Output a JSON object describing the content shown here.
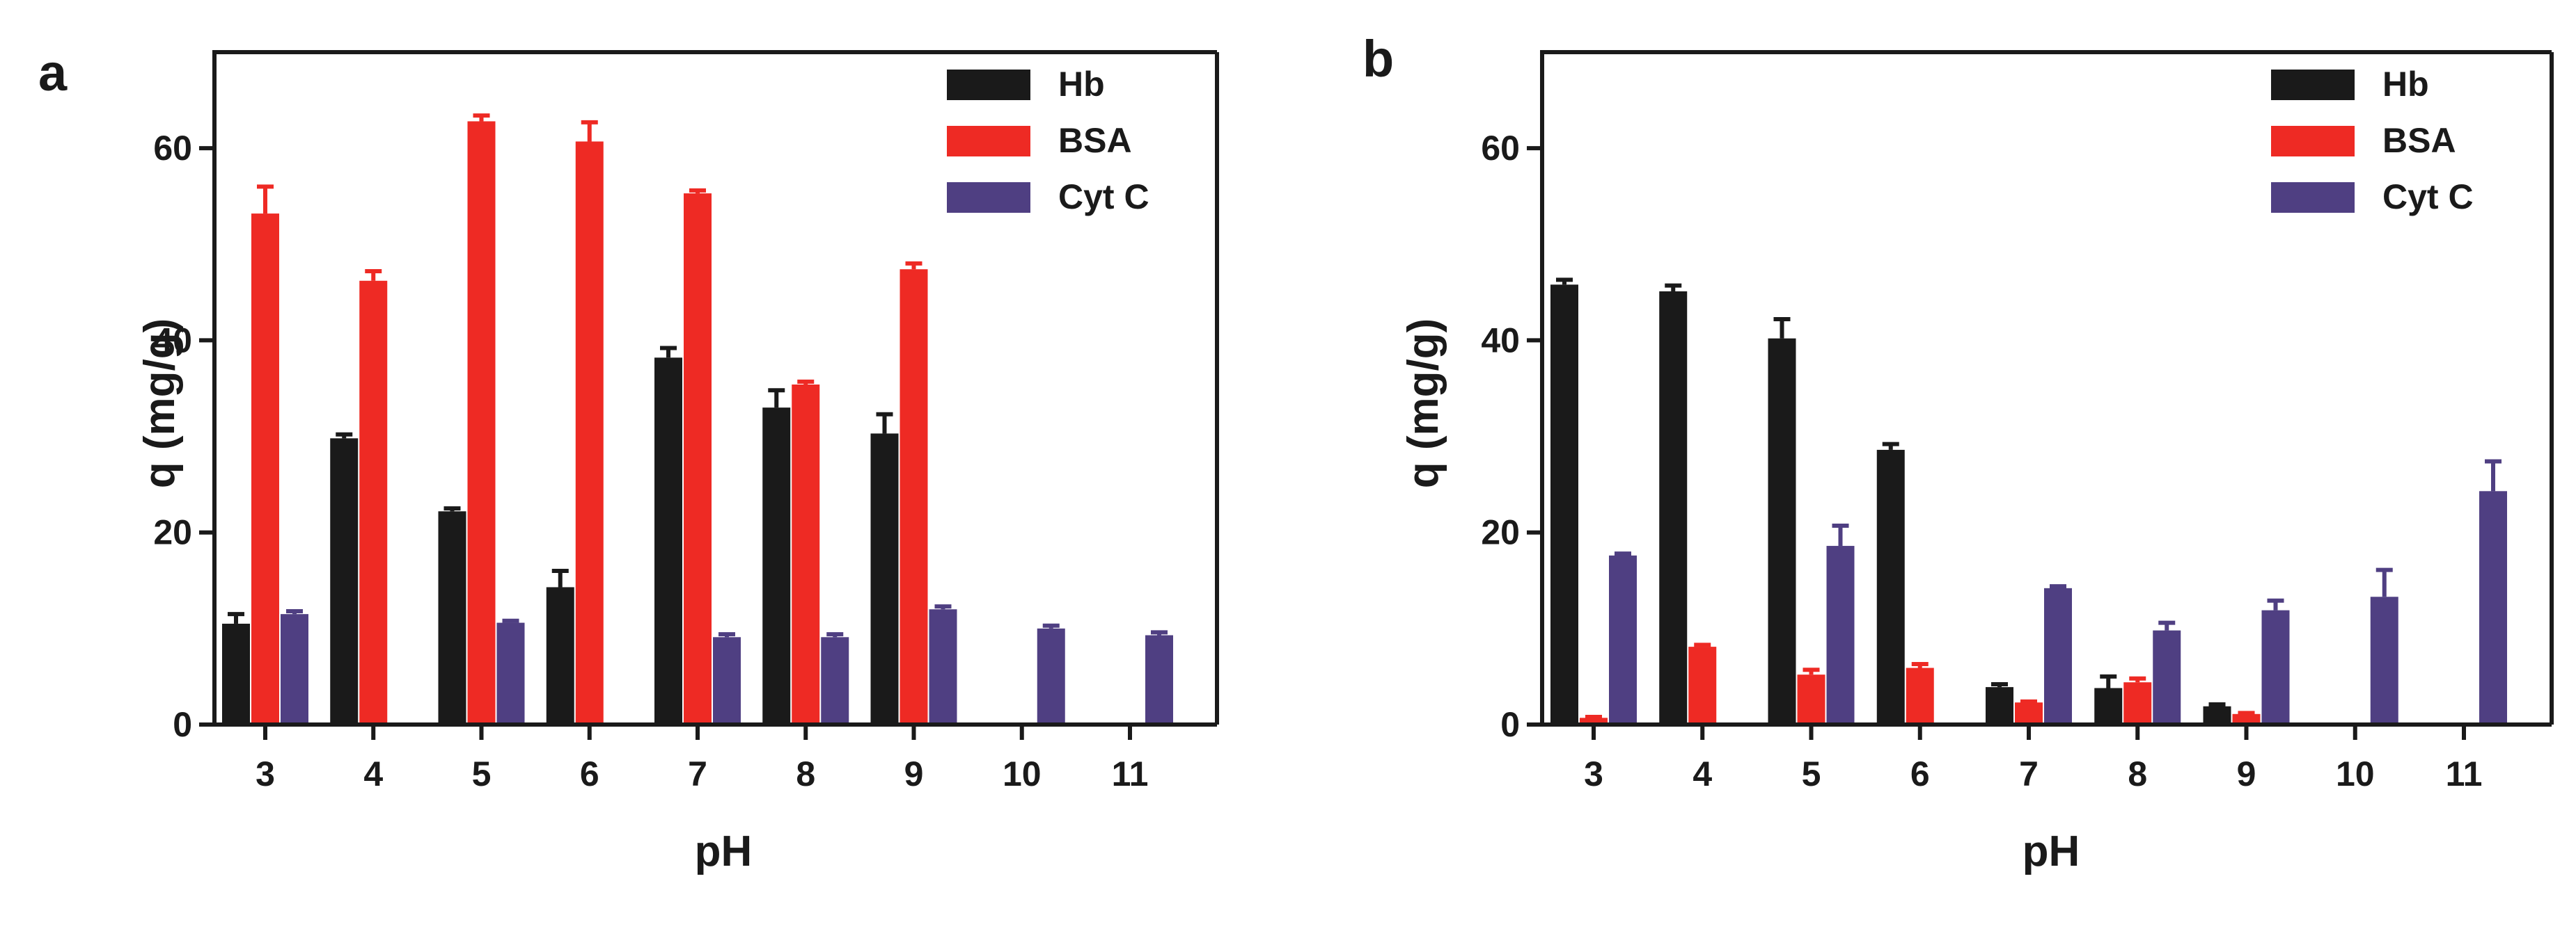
{
  "figure": {
    "colors": {
      "Hb": "#1a1a1a",
      "BSA": "#ee2a24",
      "Cyt C": "#4f3f82",
      "axis": "#1a1a1a"
    }
  },
  "chart_data": [
    {
      "type": "bar",
      "panel": "a",
      "xlabel": "pH",
      "ylabel": "q (mg/g)",
      "ylim": [
        0,
        70
      ],
      "yticks": [
        0,
        20,
        40,
        60
      ],
      "categories": [
        "3",
        "4",
        "5",
        "6",
        "7",
        "8",
        "9",
        "10",
        "11"
      ],
      "legend_position": "top-right",
      "series": [
        {
          "name": "Hb",
          "values": [
            10.5,
            29.8,
            22.2,
            14.3,
            38.2,
            33.0,
            30.3,
            null,
            null
          ],
          "errors": [
            1.0,
            0.4,
            0.3,
            1.7,
            1.0,
            1.8,
            2.0,
            null,
            null
          ]
        },
        {
          "name": "BSA",
          "values": [
            53.2,
            46.2,
            62.8,
            60.7,
            55.3,
            35.4,
            47.4,
            null,
            null
          ],
          "errors": [
            2.8,
            1.0,
            0.6,
            2.0,
            0.3,
            0.3,
            0.6,
            null,
            null
          ]
        },
        {
          "name": "Cyt C",
          "values": [
            11.5,
            null,
            10.6,
            null,
            9.1,
            9.1,
            12.0,
            10.0,
            9.3
          ],
          "errors": [
            0.3,
            null,
            0.2,
            null,
            0.3,
            0.3,
            0.3,
            0.3,
            0.3
          ]
        }
      ]
    },
    {
      "type": "bar",
      "panel": "b",
      "xlabel": "pH",
      "ylabel": "q (mg/g)",
      "ylim": [
        0,
        70
      ],
      "yticks": [
        0,
        20,
        40,
        60
      ],
      "categories": [
        "3",
        "4",
        "5",
        "6",
        "7",
        "8",
        "9",
        "10",
        "11"
      ],
      "legend_position": "top-right",
      "series": [
        {
          "name": "Hb",
          "values": [
            45.8,
            45.1,
            40.2,
            28.6,
            3.9,
            3.8,
            1.9,
            null,
            null
          ],
          "errors": [
            0.5,
            0.6,
            2.0,
            0.6,
            0.3,
            1.2,
            0.2,
            null,
            null
          ]
        },
        {
          "name": "BSA",
          "values": [
            0.7,
            8.1,
            5.2,
            5.9,
            2.3,
            4.4,
            1.1,
            null,
            null
          ],
          "errors": [
            0.1,
            0.2,
            0.5,
            0.4,
            0.1,
            0.4,
            0.1,
            null,
            null
          ]
        },
        {
          "name": "Cyt C",
          "values": [
            17.6,
            null,
            18.6,
            null,
            14.2,
            9.8,
            11.9,
            13.3,
            24.3
          ],
          "errors": [
            0.2,
            null,
            2.1,
            null,
            0.2,
            0.8,
            1.0,
            2.8,
            3.1
          ]
        }
      ]
    }
  ]
}
